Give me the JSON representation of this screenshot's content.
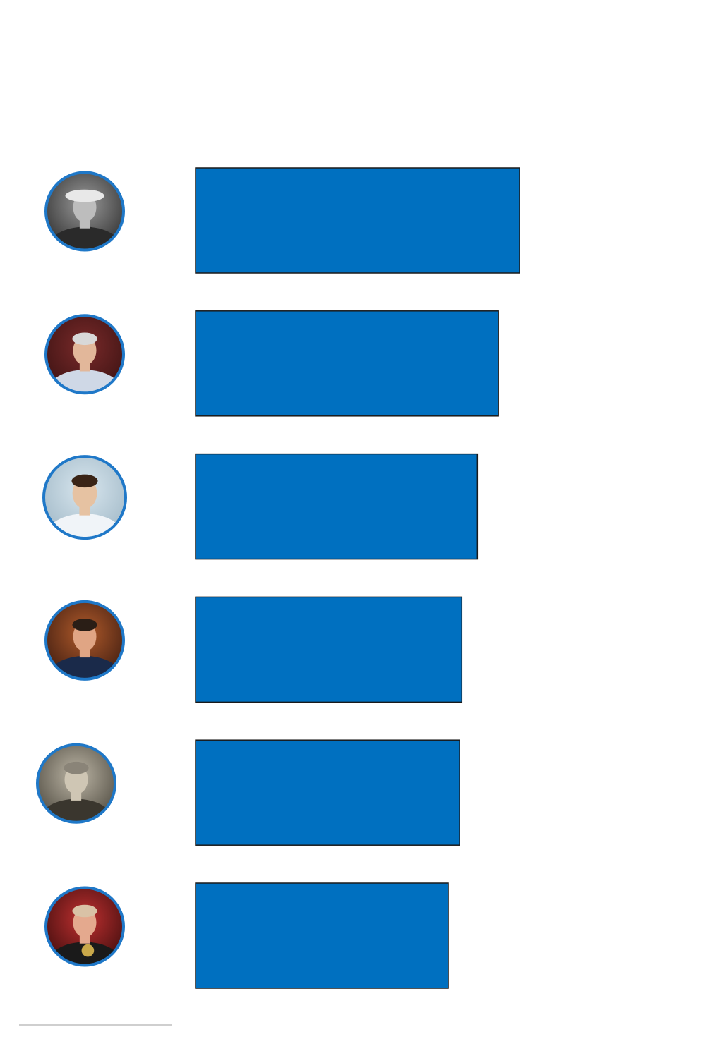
{
  "chart_data": {
    "type": "bar",
    "orientation": "horizontal",
    "title": "",
    "xlabel": "",
    "ylabel": "",
    "legend": "none",
    "grid": false,
    "categories": [
      "",
      "",
      "",
      "",
      "",
      ""
    ],
    "values": [
      100,
      93.5,
      87,
      82.2,
      81.5,
      78
    ],
    "xlim": [
      0,
      100
    ],
    "bar_color": "#0070C0",
    "bar_edge_color": "#1a1a1a",
    "ring_color": "#1f78c8",
    "portraits": [
      "portrait-flat-cap-archival",
      "portrait-grey-hair-tracksuit",
      "portrait-curly-hair-retro-kit",
      "portrait-dark-hair-navy-jacket",
      "portrait-balding-archival",
      "portrait-bald-rosette"
    ]
  }
}
